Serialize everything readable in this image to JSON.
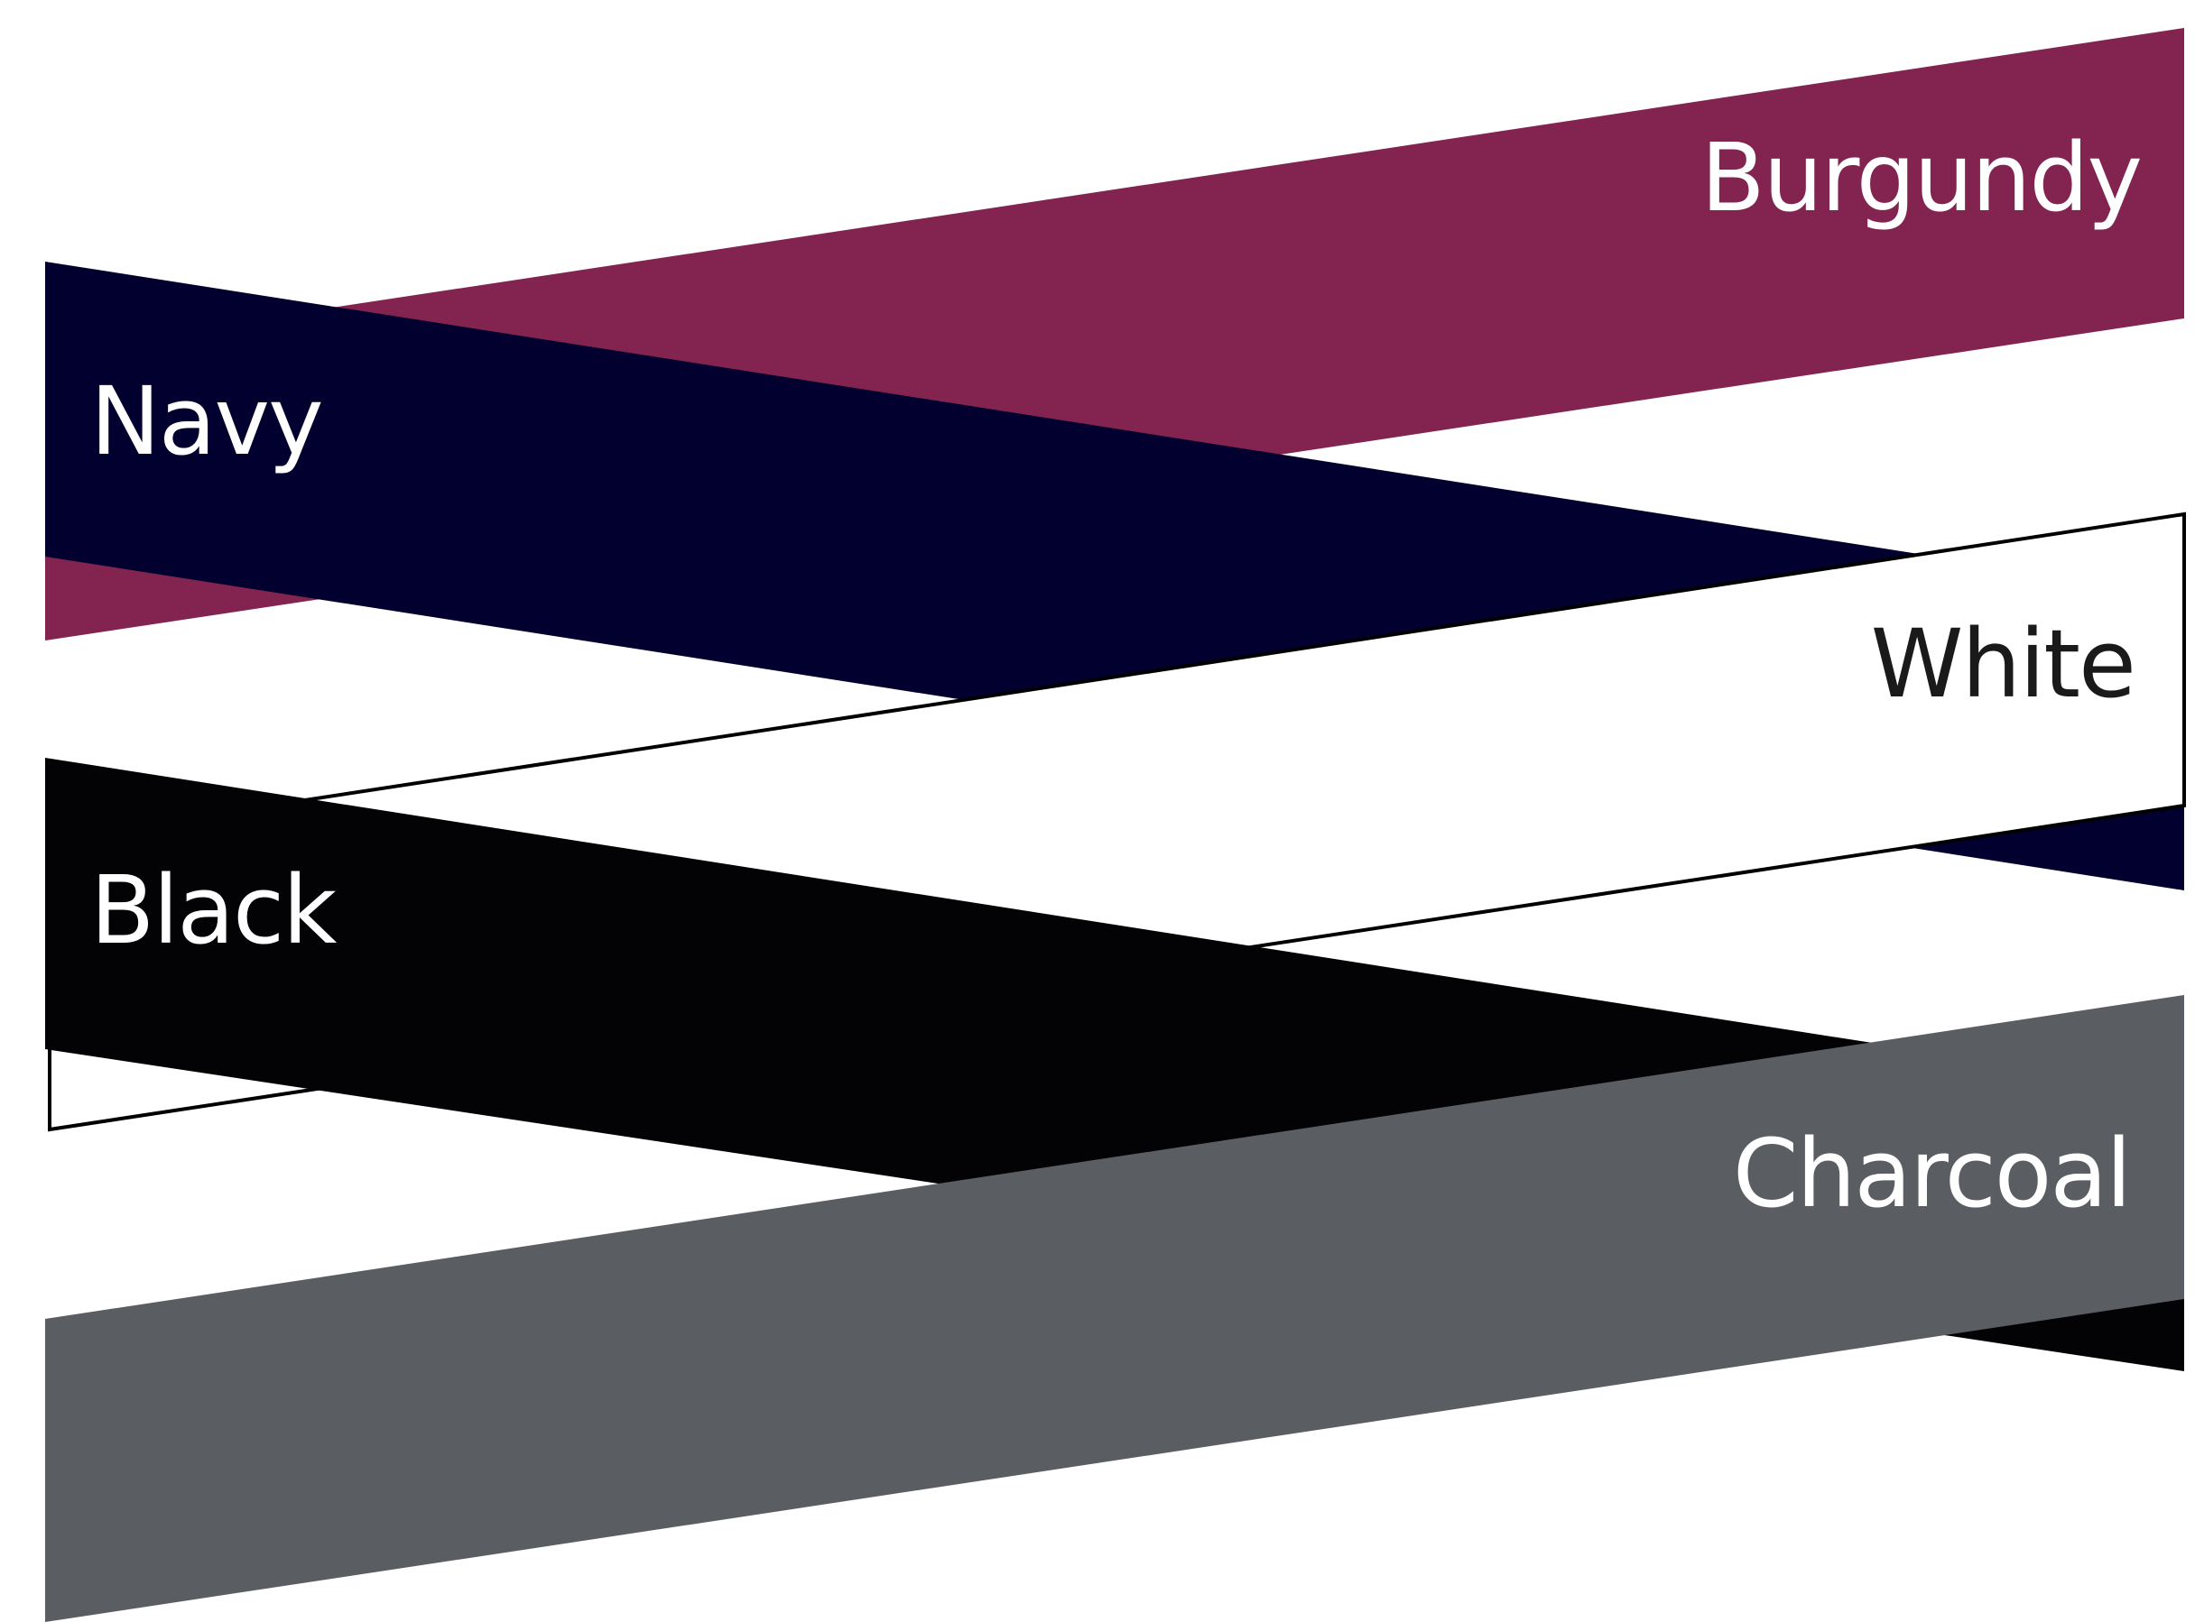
{
  "swatches": [
    {
      "key": "burgundy",
      "label": "Burgundy",
      "fill": "#822350",
      "text_color": "#ffffff"
    },
    {
      "key": "navy",
      "label": "Navy",
      "fill": "#02002e",
      "text_color": "#ffffff"
    },
    {
      "key": "white",
      "label": "White",
      "fill": "#ffffff",
      "text_color": "#1a1a1a",
      "stroke": "#000000"
    },
    {
      "key": "black",
      "label": "Black",
      "fill": "#030306",
      "text_color": "#ffffff"
    },
    {
      "key": "charcoal",
      "label": "Charcoal",
      "fill": "#5a5d62",
      "text_color": "#ffffff"
    }
  ]
}
